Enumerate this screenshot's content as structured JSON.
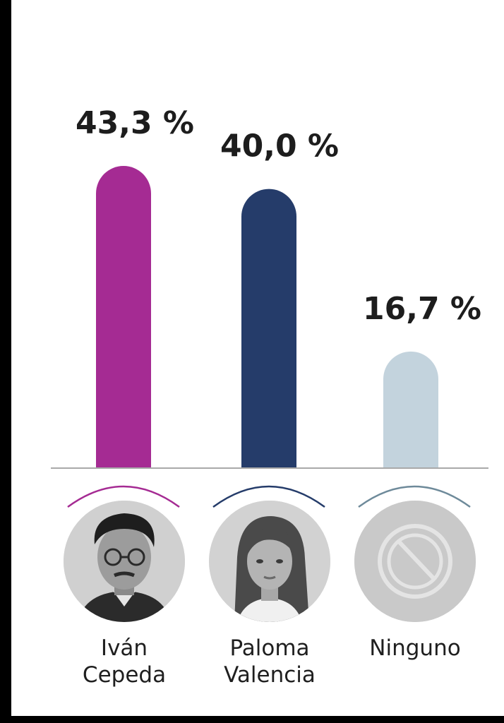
{
  "chart_data": {
    "type": "bar",
    "categories": [
      "Iván Cepeda",
      "Paloma Valencia",
      "Ninguno"
    ],
    "values": [
      43.3,
      40.0,
      16.7
    ],
    "value_labels": [
      "43,3 %",
      "40,0 %",
      "16,7 %"
    ],
    "colors": [
      "#a52b93",
      "#253c6a",
      "#c3d3dd"
    ],
    "title": "",
    "xlabel": "",
    "ylabel": "",
    "ylim": [
      0,
      50
    ],
    "grid": false,
    "legend": "none"
  },
  "candidates": [
    {
      "name_line1": "Iván",
      "name_line2": "Cepeda",
      "avatar": "photo-ivan-cepeda"
    },
    {
      "name_line1": "Paloma",
      "name_line2": "Valencia",
      "avatar": "photo-paloma-valencia"
    },
    {
      "name_line1": "Ninguno",
      "name_line2": "",
      "avatar": "none-symbol-icon"
    }
  ]
}
